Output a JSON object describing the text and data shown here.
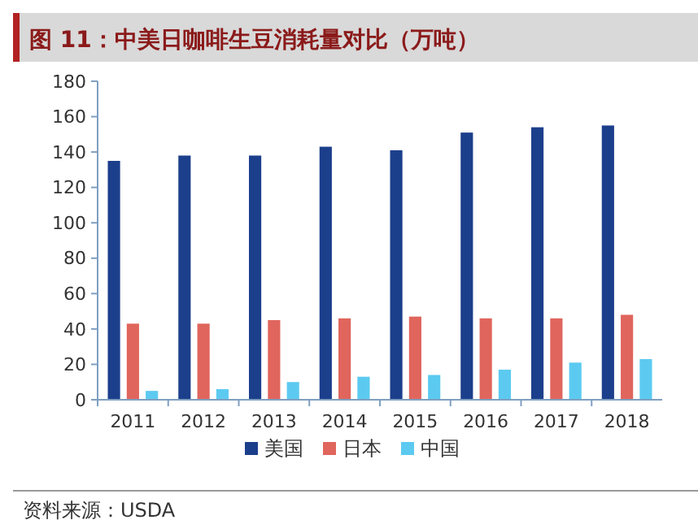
{
  "chart_data": {
    "type": "bar",
    "title": "图 11：中美日咖啡生豆消耗量对比（万吨）",
    "categories": [
      "2011",
      "2012",
      "2013",
      "2014",
      "2015",
      "2016",
      "2017",
      "2018"
    ],
    "series": [
      {
        "name": "美国",
        "color": "#1c3f8c",
        "values": [
          135,
          138,
          138,
          143,
          141,
          151,
          154,
          155
        ]
      },
      {
        "name": "日本",
        "color": "#e0655d",
        "values": [
          43,
          43,
          45,
          46,
          47,
          46,
          46,
          48
        ]
      },
      {
        "name": "中国",
        "color": "#5ccaf0",
        "values": [
          5,
          6,
          10,
          13,
          14,
          17,
          21,
          23
        ]
      }
    ],
    "ylim": [
      0,
      180
    ],
    "yticks": [
      0,
      20,
      40,
      60,
      80,
      100,
      120,
      140,
      160,
      180
    ],
    "grid": false,
    "legend": "bottom",
    "annotations": [
      "资料来源：USDA"
    ]
  }
}
